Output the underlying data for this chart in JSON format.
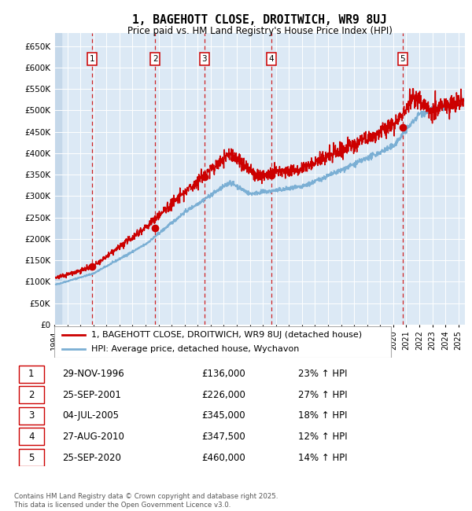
{
  "title": "1, BAGEHOTT CLOSE, DROITWICH, WR9 8UJ",
  "subtitle": "Price paid vs. HM Land Registry's House Price Index (HPI)",
  "ylim": [
    0,
    680000
  ],
  "yticks": [
    0,
    50000,
    100000,
    150000,
    200000,
    250000,
    300000,
    350000,
    400000,
    450000,
    500000,
    550000,
    600000,
    650000
  ],
  "ytick_labels": [
    "£0",
    "£50K",
    "£100K",
    "£150K",
    "£200K",
    "£250K",
    "£300K",
    "£350K",
    "£400K",
    "£450K",
    "£500K",
    "£550K",
    "£600K",
    "£650K"
  ],
  "sale_dates": [
    1996.91,
    2001.73,
    2005.51,
    2010.65,
    2020.73
  ],
  "sale_prices": [
    136000,
    226000,
    345000,
    347500,
    460000
  ],
  "sale_labels": [
    "1",
    "2",
    "3",
    "4",
    "5"
  ],
  "sale_date_str": [
    "29-NOV-1996",
    "25-SEP-2001",
    "04-JUL-2005",
    "27-AUG-2010",
    "25-SEP-2020"
  ],
  "sale_price_str": [
    "£136,000",
    "£226,000",
    "£345,000",
    "£347,500",
    "£460,000"
  ],
  "sale_hpi_str": [
    "23% ↑ HPI",
    "27% ↑ HPI",
    "18% ↑ HPI",
    "12% ↑ HPI",
    "14% ↑ HPI"
  ],
  "hpi_color": "#7bafd4",
  "price_color": "#cc0000",
  "bg_plot_color": "#dce9f5",
  "bg_hatch_color": "#c5d8ea",
  "grid_color": "#ffffff",
  "legend_line1": "1, BAGEHOTT CLOSE, DROITWICH, WR9 8UJ (detached house)",
  "legend_line2": "HPI: Average price, detached house, Wychavon",
  "footer": "Contains HM Land Registry data © Crown copyright and database right 2025.\nThis data is licensed under the Open Government Licence v3.0.",
  "xmin": 1994.0,
  "xmax": 2025.5,
  "seed": 42
}
